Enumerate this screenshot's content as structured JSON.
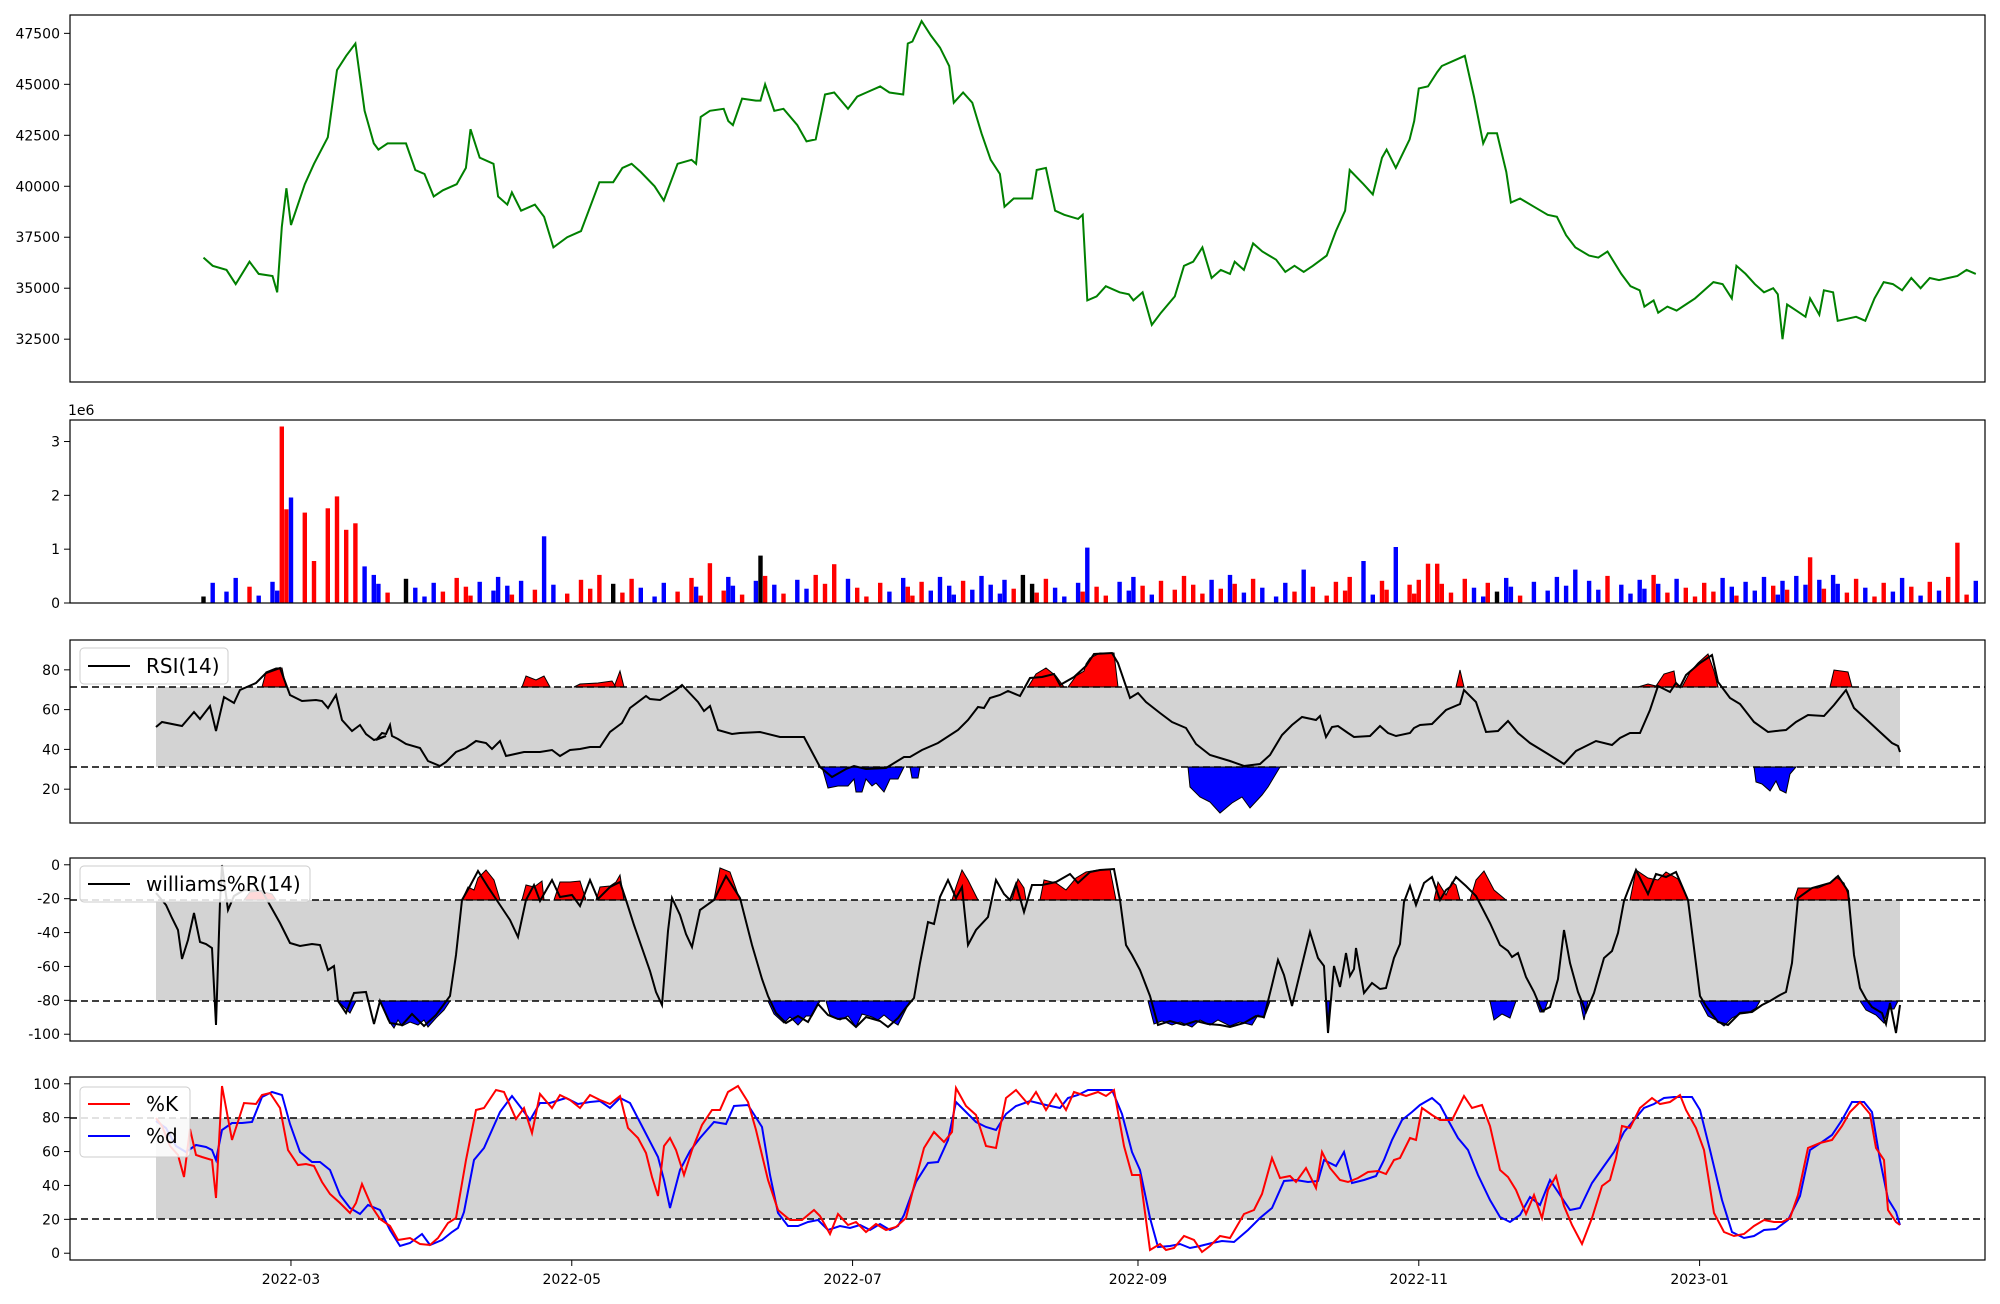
{
  "figure": {
    "date_ticks": [
      "2022-03",
      "2022-05",
      "2022-07",
      "2022-09",
      "2022-11",
      "2023-01"
    ],
    "x_start": "2022-01-12",
    "x_end": "2023-03-04"
  },
  "chart_data": [
    {
      "id": "price",
      "type": "line",
      "title": "",
      "xlabel": "",
      "ylabel": "",
      "ylim": [
        30400,
        48400
      ],
      "yticks": [
        "32500",
        "35000",
        "37500",
        "40000",
        "42500",
        "45000",
        "47500"
      ],
      "color": "#008000",
      "series": [
        {
          "points": [
            [
              "2022-02-10",
              36500
            ],
            [
              "2022-02-12",
              36100
            ],
            [
              "2022-02-15",
              35900
            ],
            [
              "2022-02-17",
              35200
            ],
            [
              "2022-02-20",
              36300
            ],
            [
              "2022-02-22",
              35700
            ],
            [
              "2022-02-25",
              35600
            ],
            [
              "2022-02-26",
              34800
            ],
            [
              "2022-02-27",
              38000
            ],
            [
              "2022-02-28",
              39900
            ],
            [
              "2022-03-01",
              38100
            ],
            [
              "2022-03-04",
              40100
            ],
            [
              "2022-03-06",
              41100
            ],
            [
              "2022-03-09",
              42400
            ],
            [
              "2022-03-11",
              45700
            ],
            [
              "2022-03-13",
              46400
            ],
            [
              "2022-03-15",
              47000
            ],
            [
              "2022-03-17",
              43700
            ],
            [
              "2022-03-19",
              42100
            ],
            [
              "2022-03-20",
              41800
            ],
            [
              "2022-03-22",
              42100
            ],
            [
              "2022-03-26",
              42100
            ],
            [
              "2022-03-28",
              40800
            ],
            [
              "2022-03-30",
              40600
            ],
            [
              "2022-04-01",
              39500
            ],
            [
              "2022-04-03",
              39800
            ],
            [
              "2022-04-06",
              40100
            ],
            [
              "2022-04-08",
              40900
            ],
            [
              "2022-04-09",
              42800
            ],
            [
              "2022-04-11",
              41400
            ],
            [
              "2022-04-14",
              41100
            ],
            [
              "2022-04-15",
              39500
            ],
            [
              "2022-04-17",
              39100
            ],
            [
              "2022-04-18",
              39700
            ],
            [
              "2022-04-20",
              38800
            ],
            [
              "2022-04-23",
              39100
            ],
            [
              "2022-04-25",
              38500
            ],
            [
              "2022-04-27",
              37000
            ],
            [
              "2022-04-30",
              37500
            ],
            [
              "2022-05-03",
              37800
            ],
            [
              "2022-05-05",
              39000
            ],
            [
              "2022-05-07",
              40200
            ],
            [
              "2022-05-10",
              40200
            ],
            [
              "2022-05-12",
              40900
            ],
            [
              "2022-05-14",
              41100
            ],
            [
              "2022-05-16",
              40700
            ],
            [
              "2022-05-19",
              40000
            ],
            [
              "2022-05-21",
              39300
            ],
            [
              "2022-05-24",
              41100
            ],
            [
              "2022-05-27",
              41300
            ],
            [
              "2022-05-28",
              41100
            ],
            [
              "2022-05-29",
              43400
            ],
            [
              "2022-05-31",
              43700
            ],
            [
              "2022-06-03",
              43800
            ],
            [
              "2022-06-04",
              43200
            ],
            [
              "2022-06-05",
              43000
            ],
            [
              "2022-06-07",
              44300
            ],
            [
              "2022-06-10",
              44200
            ],
            [
              "2022-06-11",
              44200
            ],
            [
              "2022-06-12",
              45000
            ],
            [
              "2022-06-14",
              43700
            ],
            [
              "2022-06-16",
              43800
            ],
            [
              "2022-06-19",
              43000
            ],
            [
              "2022-06-21",
              42200
            ],
            [
              "2022-06-23",
              42300
            ],
            [
              "2022-06-25",
              44500
            ],
            [
              "2022-06-27",
              44600
            ],
            [
              "2022-06-30",
              43800
            ],
            [
              "2022-07-02",
              44400
            ],
            [
              "2022-07-04",
              44600
            ],
            [
              "2022-07-07",
              44900
            ],
            [
              "2022-07-09",
              44600
            ],
            [
              "2022-07-12",
              44500
            ],
            [
              "2022-07-13",
              47000
            ],
            [
              "2022-07-14",
              47100
            ],
            [
              "2022-07-16",
              48100
            ],
            [
              "2022-07-18",
              47400
            ],
            [
              "2022-07-20",
              46800
            ],
            [
              "2022-07-22",
              45900
            ],
            [
              "2022-07-23",
              44100
            ],
            [
              "2022-07-25",
              44600
            ],
            [
              "2022-07-27",
              44100
            ],
            [
              "2022-07-29",
              42600
            ],
            [
              "2022-07-31",
              41300
            ],
            [
              "2022-08-02",
              40600
            ],
            [
              "2022-08-03",
              39000
            ],
            [
              "2022-08-05",
              39400
            ],
            [
              "2022-08-07",
              39400
            ],
            [
              "2022-08-09",
              39400
            ],
            [
              "2022-08-10",
              40800
            ],
            [
              "2022-08-12",
              40900
            ],
            [
              "2022-08-14",
              38800
            ],
            [
              "2022-08-16",
              38600
            ],
            [
              "2022-08-19",
              38400
            ],
            [
              "2022-08-20",
              38600
            ],
            [
              "2022-08-21",
              34400
            ],
            [
              "2022-08-23",
              34600
            ],
            [
              "2022-08-25",
              35100
            ],
            [
              "2022-08-28",
              34800
            ],
            [
              "2022-08-30",
              34700
            ],
            [
              "2022-08-31",
              34400
            ],
            [
              "2022-09-02",
              34800
            ],
            [
              "2022-09-04",
              33200
            ],
            [
              "2022-09-06",
              33800
            ],
            [
              "2022-09-09",
              34600
            ],
            [
              "2022-09-11",
              36100
            ],
            [
              "2022-09-13",
              36300
            ],
            [
              "2022-09-15",
              37000
            ],
            [
              "2022-09-17",
              35500
            ],
            [
              "2022-09-19",
              35900
            ],
            [
              "2022-09-21",
              35700
            ],
            [
              "2022-09-22",
              36300
            ],
            [
              "2022-09-24",
              35900
            ],
            [
              "2022-09-26",
              37200
            ],
            [
              "2022-09-28",
              36800
            ],
            [
              "2022-10-01",
              36400
            ],
            [
              "2022-10-03",
              35800
            ],
            [
              "2022-10-05",
              36100
            ],
            [
              "2022-10-07",
              35800
            ],
            [
              "2022-10-09",
              36100
            ],
            [
              "2022-10-12",
              36600
            ],
            [
              "2022-10-14",
              37800
            ],
            [
              "2022-10-16",
              38800
            ],
            [
              "2022-10-17",
              40800
            ],
            [
              "2022-10-20",
              40100
            ],
            [
              "2022-10-22",
              39600
            ],
            [
              "2022-10-24",
              41400
            ],
            [
              "2022-10-25",
              41800
            ],
            [
              "2022-10-27",
              40900
            ],
            [
              "2022-10-30",
              42300
            ],
            [
              "2022-10-31",
              43200
            ],
            [
              "2022-11-01",
              44800
            ],
            [
              "2022-11-03",
              44900
            ],
            [
              "2022-11-05",
              45600
            ],
            [
              "2022-11-06",
              45900
            ],
            [
              "2022-11-08",
              46100
            ],
            [
              "2022-11-11",
              46400
            ],
            [
              "2022-11-13",
              44400
            ],
            [
              "2022-11-15",
              42100
            ],
            [
              "2022-11-16",
              42600
            ],
            [
              "2022-11-18",
              42600
            ],
            [
              "2022-11-20",
              40700
            ],
            [
              "2022-11-21",
              39200
            ],
            [
              "2022-11-23",
              39400
            ],
            [
              "2022-11-26",
              39000
            ],
            [
              "2022-11-29",
              38600
            ],
            [
              "2022-12-01",
              38500
            ],
            [
              "2022-12-03",
              37600
            ],
            [
              "2022-12-05",
              37000
            ],
            [
              "2022-12-08",
              36600
            ],
            [
              "2022-12-10",
              36500
            ],
            [
              "2022-12-12",
              36800
            ],
            [
              "2022-12-15",
              35700
            ],
            [
              "2022-12-17",
              35100
            ],
            [
              "2022-12-19",
              34900
            ],
            [
              "2022-12-20",
              34100
            ],
            [
              "2022-12-22",
              34400
            ],
            [
              "2022-12-23",
              33800
            ],
            [
              "2022-12-25",
              34100
            ],
            [
              "2022-12-27",
              33900
            ],
            [
              "2022-12-29",
              34200
            ],
            [
              "2022-12-31",
              34500
            ],
            [
              "2023-01-02",
              34900
            ],
            [
              "2023-01-04",
              35300
            ],
            [
              "2023-01-06",
              35200
            ],
            [
              "2023-01-08",
              34500
            ],
            [
              "2023-01-09",
              36100
            ],
            [
              "2023-01-11",
              35700
            ],
            [
              "2023-01-13",
              35200
            ],
            [
              "2023-01-15",
              34800
            ],
            [
              "2023-01-17",
              35000
            ],
            [
              "2023-01-18",
              34700
            ],
            [
              "2023-01-19",
              32500
            ],
            [
              "2023-01-20",
              34200
            ],
            [
              "2023-01-22",
              33900
            ],
            [
              "2023-01-24",
              33600
            ],
            [
              "2023-01-25",
              34500
            ],
            [
              "2023-01-27",
              33700
            ],
            [
              "2023-01-28",
              34900
            ],
            [
              "2023-01-30",
              34800
            ],
            [
              "2023-01-31",
              33400
            ],
            [
              "2023-02-02",
              33500
            ],
            [
              "2023-02-04",
              33600
            ],
            [
              "2023-02-06",
              33400
            ],
            [
              "2023-02-08",
              34500
            ],
            [
              "2023-02-10",
              35300
            ],
            [
              "2023-02-12",
              35200
            ],
            [
              "2023-02-14",
              34900
            ],
            [
              "2023-02-16",
              35500
            ],
            [
              "2023-02-18",
              35000
            ],
            [
              "2023-02-20",
              35500
            ],
            [
              "2023-02-22",
              35400
            ],
            [
              "2023-02-24",
              35500
            ],
            [
              "2023-02-26",
              35600
            ],
            [
              "2023-02-28",
              35900
            ],
            [
              "2023-03-02",
              35700
            ]
          ]
        }
      ]
    },
    {
      "id": "volume",
      "type": "bar",
      "title": "",
      "scale_label": "1e6",
      "ylim": [
        0,
        3.4
      ],
      "yticks": [
        "0",
        "1",
        "2",
        "3"
      ],
      "colors": {
        "up": "#ff0000",
        "down": "#0000ff",
        "flat": "#000000"
      }
    },
    {
      "id": "rsi",
      "type": "line",
      "legend": [
        "RSI(14)"
      ],
      "ylim": [
        3,
        95
      ],
      "yticks": [
        "20",
        "40",
        "60",
        "80"
      ],
      "thresholds": [
        30,
        70
      ],
      "colors": {
        "line": "#000000",
        "above": "#ff0000",
        "below": "#0000ff",
        "band": "#d3d3d3"
      }
    },
    {
      "id": "williams",
      "type": "line",
      "legend": [
        "williams%R(14)"
      ],
      "ylim": [
        -104,
        4
      ],
      "yticks": [
        "0",
        "-20",
        "-40",
        "-60",
        "-80",
        "-100"
      ],
      "thresholds": [
        -80,
        -20
      ],
      "colors": {
        "line": "#000000",
        "above": "#ff0000",
        "below": "#0000ff",
        "band": "#d3d3d3"
      }
    },
    {
      "id": "stochastic",
      "type": "line",
      "legend": [
        "%K",
        "%d"
      ],
      "ylim": [
        -4,
        104
      ],
      "yticks": [
        "0",
        "20",
        "40",
        "60",
        "80",
        "100"
      ],
      "thresholds": [
        20,
        80
      ],
      "colors": {
        "k": "#ff0000",
        "d": "#0000ff",
        "band": "#d3d3d3"
      }
    }
  ]
}
